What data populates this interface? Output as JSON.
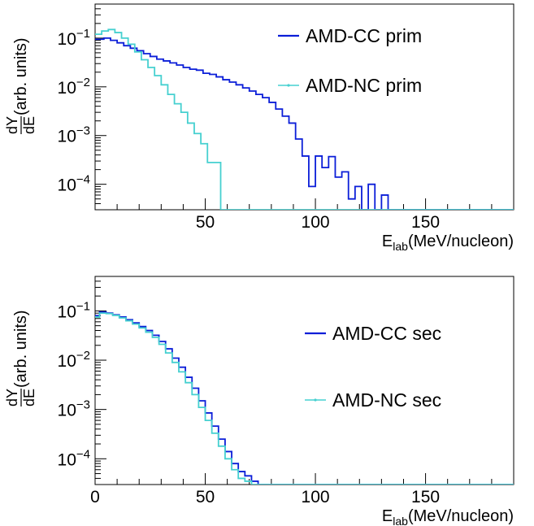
{
  "colors": {
    "cc": "#0b1ed8",
    "nc": "#46d0d0",
    "axis": "#000000",
    "background": "#ffffff"
  },
  "chart_data": [
    {
      "type": "line",
      "step": true,
      "ylog": true,
      "xlim": [
        0,
        190
      ],
      "ylim": [
        3e-05,
        0.5
      ],
      "xticks": [
        {
          "value": 50,
          "label": "50"
        },
        {
          "value": 100,
          "label": "100"
        },
        {
          "value": 150,
          "label": "150"
        }
      ],
      "yticks": [
        {
          "value": 0.1,
          "base": "10",
          "exp": "−1"
        },
        {
          "value": 0.01,
          "base": "10",
          "exp": "−2"
        },
        {
          "value": 0.001,
          "base": "10",
          "exp": "−3"
        },
        {
          "value": 0.0001,
          "base": "10",
          "exp": "−4"
        }
      ],
      "xlabel": {
        "main": "E",
        "sub": "lab",
        "rest": "(MeV/nucleon)"
      },
      "ylabel": {
        "frac_num": "dY",
        "frac_den": "dE",
        "rest": "(arb. units)"
      },
      "legend_position": "top-right",
      "series": [
        {
          "name": "AMD-CC prim",
          "color_key": "cc",
          "edges": [
            0,
            4,
            7,
            10,
            13,
            16,
            19,
            22,
            25,
            28,
            31,
            34,
            37,
            40,
            43,
            46,
            49,
            52,
            55,
            58,
            61,
            64,
            67,
            70,
            73,
            76,
            79,
            82,
            85,
            88,
            91,
            94,
            97,
            100,
            103,
            106,
            109,
            112,
            115,
            118,
            121,
            124,
            127,
            130,
            133,
            136,
            139,
            142,
            145,
            148,
            151,
            154,
            190
          ],
          "values": [
            0.095,
            0.1,
            0.09,
            0.08,
            0.07,
            0.062,
            0.055,
            0.048,
            0.042,
            0.037,
            0.034,
            0.031,
            0.028,
            0.025,
            0.023,
            0.022,
            0.019,
            0.018,
            0.016,
            0.014,
            0.0125,
            0.011,
            0.0095,
            0.0082,
            0.007,
            0.006,
            0.0048,
            0.0035,
            0.0025,
            0.0018,
            0.00085,
            0.00038,
            9e-05,
            0.00038,
            0.00022,
            0.00037,
            0.00014,
            0.00018,
            5e-05,
            9e-05,
            3e-05,
            0.0001,
            3e-05,
            6e-05,
            3e-05,
            3e-05,
            3e-05,
            3e-05,
            3e-05,
            3e-05,
            3e-05,
            3e-05
          ]
        },
        {
          "name": "AMD-NC prim",
          "color_key": "nc",
          "edges": [
            0,
            3,
            6,
            9,
            12,
            15,
            18,
            21,
            24,
            27,
            30,
            33,
            36,
            39,
            42,
            45,
            48,
            51,
            54,
            57,
            190
          ],
          "values": [
            0.12,
            0.14,
            0.15,
            0.13,
            0.1,
            0.075,
            0.052,
            0.036,
            0.025,
            0.017,
            0.011,
            0.007,
            0.0045,
            0.003,
            0.0018,
            0.0011,
            0.00068,
            0.00028,
            0.00028,
            3e-05
          ]
        }
      ],
      "legend": [
        {
          "label": "AMD-CC prim",
          "color_key": "cc"
        },
        {
          "label": "AMD-NC prim",
          "color_key": "nc"
        }
      ]
    },
    {
      "type": "line",
      "step": true,
      "ylog": true,
      "xlim": [
        0,
        190
      ],
      "ylim": [
        3e-05,
        0.5
      ],
      "xticks": [
        {
          "value": 0,
          "label": "0"
        },
        {
          "value": 50,
          "label": "50"
        },
        {
          "value": 100,
          "label": "100"
        },
        {
          "value": 150,
          "label": "150"
        }
      ],
      "yticks": [
        {
          "value": 0.1,
          "base": "10",
          "exp": "−1"
        },
        {
          "value": 0.01,
          "base": "10",
          "exp": "−2"
        },
        {
          "value": 0.001,
          "base": "10",
          "exp": "−3"
        },
        {
          "value": 0.0001,
          "base": "10",
          "exp": "−4"
        }
      ],
      "xlabel": {
        "main": "E",
        "sub": "lab",
        "rest": "(MeV/nucleon)"
      },
      "ylabel": {
        "frac_num": "dY",
        "frac_den": "dE",
        "rest": "(arb. units)"
      },
      "legend_position": "right",
      "series": [
        {
          "name": "AMD-CC sec",
          "color_key": "cc",
          "edges": [
            0,
            2,
            5,
            8,
            11,
            14,
            17,
            20,
            23,
            26,
            29,
            32,
            35,
            38,
            41,
            44,
            47,
            50,
            53,
            56,
            59,
            62,
            65,
            68,
            71,
            74,
            77,
            190
          ],
          "values": [
            0.08,
            0.095,
            0.09,
            0.083,
            0.075,
            0.066,
            0.057,
            0.048,
            0.04,
            0.032,
            0.024,
            0.017,
            0.011,
            0.0072,
            0.0045,
            0.0027,
            0.0015,
            0.00085,
            0.00046,
            0.00025,
            0.00014,
            8e-05,
            5.5e-05,
            4.5e-05,
            3.5e-05,
            3e-05,
            3e-05
          ]
        },
        {
          "name": "AMD-NC sec",
          "color_key": "nc",
          "edges": [
            0,
            2,
            5,
            8,
            11,
            14,
            17,
            20,
            23,
            26,
            29,
            32,
            35,
            38,
            41,
            44,
            47,
            50,
            53,
            56,
            59,
            62,
            65,
            68,
            71,
            74,
            77,
            190
          ],
          "values": [
            0.075,
            0.09,
            0.088,
            0.081,
            0.072,
            0.063,
            0.054,
            0.045,
            0.037,
            0.029,
            0.021,
            0.014,
            0.009,
            0.0058,
            0.0035,
            0.002,
            0.0011,
            0.0006,
            0.00033,
            0.00018,
            0.0001,
            6e-05,
            4e-05,
            3.5e-05,
            3e-05,
            3e-05,
            3e-05
          ]
        }
      ],
      "legend": [
        {
          "label": "AMD-CC sec",
          "color_key": "cc"
        },
        {
          "label": "AMD-NC sec",
          "color_key": "nc"
        }
      ]
    }
  ]
}
